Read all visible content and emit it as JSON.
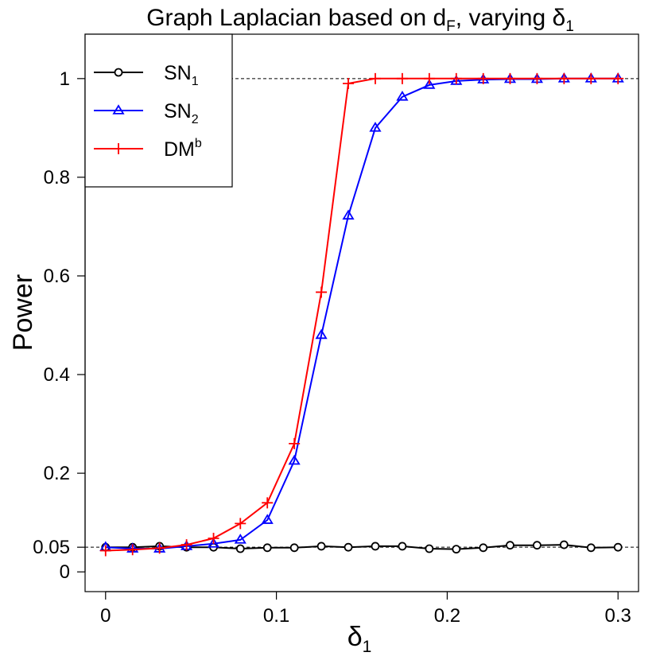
{
  "chart_data": {
    "type": "line",
    "title": {
      "prefix": "Graph Laplacian based on d",
      "sub": "F",
      "suffix": ", varying δ",
      "sub2": "1"
    },
    "xlabel": {
      "base": "δ",
      "sub": "1"
    },
    "ylabel": "Power",
    "xlim": [
      -0.012,
      0.312
    ],
    "ylim": [
      -0.04,
      1.09
    ],
    "x_ticks": [
      0,
      0.1,
      0.2,
      0.3
    ],
    "x_tick_labels": [
      "0",
      "0.1",
      "0.2",
      "0.3"
    ],
    "y_ticks": [
      0,
      0.05,
      0.2,
      0.4,
      0.6,
      0.8,
      1
    ],
    "y_tick_labels": [
      "0",
      "0.05",
      "0.2",
      "0.4",
      "0.6",
      "0.8",
      "1"
    ],
    "reference_lines": [
      1.0,
      0.05
    ],
    "x": [
      0,
      0.0158,
      0.0316,
      0.0474,
      0.0632,
      0.0789,
      0.0947,
      0.1105,
      0.1263,
      0.1421,
      0.1579,
      0.1737,
      0.1895,
      0.2053,
      0.2211,
      0.2368,
      0.2526,
      0.2684,
      0.2842,
      0.3
    ],
    "series": [
      {
        "name": "SN1",
        "label": "SN",
        "label_sub": "1",
        "label_sup": "",
        "color": "#000000",
        "marker": "circle",
        "values": [
          0.05,
          0.05,
          0.052,
          0.05,
          0.05,
          0.047,
          0.049,
          0.049,
          0.052,
          0.05,
          0.052,
          0.052,
          0.047,
          0.046,
          0.049,
          0.054,
          0.054,
          0.055,
          0.049,
          0.05
        ]
      },
      {
        "name": "SN2",
        "label": "SN",
        "label_sub": "2",
        "label_sup": "",
        "color": "#0000ff",
        "marker": "triangle",
        "values": [
          0.05,
          0.047,
          0.047,
          0.052,
          0.057,
          0.065,
          0.105,
          0.225,
          0.48,
          0.722,
          0.9,
          0.963,
          0.987,
          0.995,
          0.998,
          0.999,
          0.999,
          1.0,
          1.0,
          1.0
        ]
      },
      {
        "name": "DMb",
        "label": "DM",
        "label_sub": "",
        "label_sup": "b",
        "color": "#ff0000",
        "marker": "plus",
        "values": [
          0.043,
          0.045,
          0.048,
          0.055,
          0.068,
          0.098,
          0.14,
          0.26,
          0.567,
          0.99,
          1.0,
          1.0,
          1.0,
          1.0,
          1.0,
          1.0,
          1.0,
          1.0,
          1.0,
          1.0
        ]
      }
    ],
    "legend": "top-left"
  }
}
